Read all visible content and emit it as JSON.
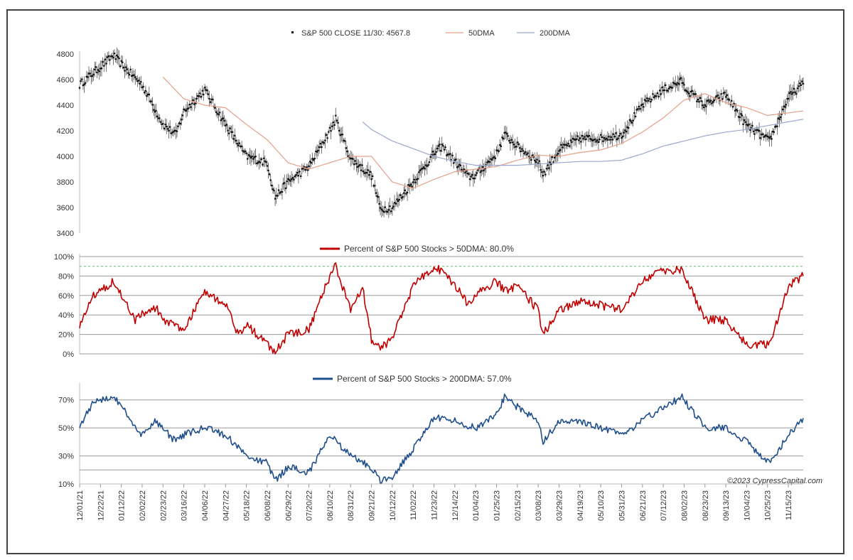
{
  "copyright": "©2023 CypressCapital.com",
  "x_tick_labels": [
    "12/01/21",
    "12/22/21",
    "01/12/22",
    "02/02/22",
    "02/23/22",
    "03/16/22",
    "04/06/22",
    "04/27/22",
    "05/18/22",
    "06/08/22",
    "06/29/22",
    "07/20/22",
    "08/10/22",
    "08/31/22",
    "09/21/22",
    "10/12/22",
    "11/02/22",
    "11/23/22",
    "12/14/22",
    "01/04/23",
    "01/25/23",
    "02/15/23",
    "03/08/23",
    "03/29/23",
    "04/19/23",
    "05/10/23",
    "05/31/23",
    "06/21/23",
    "07/12/23",
    "08/02/23",
    "08/23/23",
    "09/13/23",
    "10/04/23",
    "10/25/23",
    "11/15/23"
  ],
  "colors": {
    "price": "#111111",
    "ma50": "#e6a088",
    "ma200": "#9aa8cc",
    "red": "#c00000",
    "blue": "#1f4e8c",
    "grid": "#999999",
    "dash": "#66bb66"
  },
  "chart_data": [
    {
      "type": "line",
      "legend_placement": "top",
      "ylim": [
        3400,
        4800
      ],
      "yticks": [
        3400,
        3600,
        3800,
        4000,
        4200,
        4400,
        4600,
        4800
      ],
      "grid": false,
      "series": [
        {
          "name": "S&P 500 CLOSE 11/30: 4567.8",
          "style": "dots",
          "x": [
            "12/01/21",
            "12/22/21",
            "01/04/22",
            "01/12/22",
            "02/02/22",
            "02/23/22",
            "03/08/22",
            "03/16/22",
            "04/06/22",
            "04/27/22",
            "05/18/22",
            "06/08/22",
            "06/16/22",
            "06/29/22",
            "07/20/22",
            "08/10/22",
            "08/16/22",
            "08/31/22",
            "09/21/22",
            "09/30/22",
            "10/12/22",
            "11/02/22",
            "11/23/22",
            "12/01/22",
            "12/14/22",
            "12/28/22",
            "01/04/23",
            "01/25/23",
            "02/02/23",
            "02/15/23",
            "03/08/23",
            "03/13/23",
            "03/29/23",
            "04/19/23",
            "05/10/23",
            "05/31/23",
            "06/21/23",
            "07/12/23",
            "07/31/23",
            "08/02/23",
            "08/23/23",
            "09/13/23",
            "10/04/23",
            "10/27/23",
            "11/15/23",
            "11/30/23"
          ],
          "y": [
            4560,
            4700,
            4790,
            4720,
            4560,
            4250,
            4170,
            4350,
            4520,
            4250,
            4000,
            3950,
            3680,
            3800,
            3920,
            4200,
            4290,
            3980,
            3850,
            3590,
            3600,
            3800,
            4020,
            4080,
            3960,
            3840,
            3850,
            4020,
            4170,
            4080,
            3960,
            3860,
            4050,
            4140,
            4140,
            4170,
            4400,
            4520,
            4590,
            4540,
            4400,
            4480,
            4240,
            4120,
            4460,
            4567.8
          ]
        },
        {
          "name": "50DMA",
          "style": "line",
          "x": [
            "02/23/22",
            "03/16/22",
            "04/06/22",
            "04/27/22",
            "05/18/22",
            "06/08/22",
            "06/29/22",
            "07/20/22",
            "08/10/22",
            "08/31/22",
            "09/21/22",
            "10/12/22",
            "11/02/22",
            "11/23/22",
            "12/14/22",
            "01/04/23",
            "01/25/23",
            "02/15/23",
            "03/08/23",
            "03/29/23",
            "04/19/23",
            "05/10/23",
            "05/31/23",
            "06/21/23",
            "07/12/23",
            "08/02/23",
            "08/23/23",
            "09/13/23",
            "10/04/23",
            "10/25/23",
            "11/15/23",
            "11/30/23"
          ],
          "y": [
            4620,
            4450,
            4400,
            4380,
            4250,
            4130,
            3950,
            3900,
            3950,
            4000,
            4000,
            3800,
            3750,
            3820,
            3880,
            3900,
            3920,
            3970,
            4010,
            4000,
            4030,
            4050,
            4100,
            4190,
            4300,
            4440,
            4490,
            4420,
            4380,
            4320,
            4340,
            4355
          ]
        },
        {
          "name": "200DMA",
          "style": "line",
          "x": [
            "09/12/22",
            "09/21/22",
            "10/12/22",
            "11/02/22",
            "11/23/22",
            "12/14/22",
            "01/04/23",
            "01/25/23",
            "02/15/23",
            "03/08/23",
            "03/29/23",
            "04/19/23",
            "05/10/23",
            "05/31/23",
            "06/21/23",
            "07/12/23",
            "08/02/23",
            "08/23/23",
            "09/13/23",
            "10/04/23",
            "10/25/23",
            "11/15/23",
            "11/30/23"
          ],
          "y": [
            4270,
            4210,
            4120,
            4060,
            4000,
            3960,
            3930,
            3930,
            3930,
            3940,
            3950,
            3960,
            3960,
            3970,
            4020,
            4080,
            4120,
            4160,
            4190,
            4210,
            4240,
            4270,
            4290
          ]
        }
      ]
    },
    {
      "type": "line",
      "legend_placement": "top",
      "ylim": [
        0,
        100
      ],
      "yticks": [
        0,
        20,
        40,
        60,
        80,
        100
      ],
      "ytick_labels": [
        "0%",
        "20%",
        "40%",
        "60%",
        "80%",
        "100%"
      ],
      "grid": true,
      "reference_line": 90,
      "series": [
        {
          "name": "Percent of S&P 500 Stocks > 50DMA: 80.0%",
          "x": [
            "12/01/21",
            "12/15/21",
            "01/04/22",
            "01/12/22",
            "01/26/22",
            "02/02/22",
            "02/16/22",
            "02/23/22",
            "03/16/22",
            "04/06/22",
            "04/27/22",
            "05/10/22",
            "05/18/22",
            "06/08/22",
            "06/16/22",
            "06/29/22",
            "07/20/22",
            "08/10/22",
            "08/16/22",
            "08/31/22",
            "09/12/22",
            "09/21/22",
            "09/30/22",
            "10/12/22",
            "11/02/22",
            "11/23/22",
            "12/01/22",
            "12/14/22",
            "12/28/22",
            "01/04/23",
            "01/25/23",
            "02/02/23",
            "02/15/23",
            "03/08/23",
            "03/13/23",
            "03/29/23",
            "04/19/23",
            "05/10/23",
            "05/31/23",
            "06/21/23",
            "07/12/23",
            "07/31/23",
            "08/23/23",
            "09/13/23",
            "10/04/23",
            "10/27/23",
            "11/15/23",
            "11/30/23"
          ],
          "y": [
            30,
            60,
            75,
            60,
            35,
            40,
            48,
            35,
            25,
            65,
            50,
            20,
            30,
            10,
            3,
            20,
            25,
            80,
            90,
            45,
            70,
            15,
            5,
            15,
            70,
            90,
            85,
            70,
            50,
            60,
            75,
            65,
            70,
            45,
            20,
            45,
            55,
            50,
            45,
            75,
            85,
            87,
            35,
            35,
            10,
            10,
            70,
            80
          ]
        }
      ]
    },
    {
      "type": "line",
      "legend_placement": "top",
      "ylim": [
        10,
        80
      ],
      "yticks": [
        10,
        30,
        50,
        70
      ],
      "ytick_labels": [
        "10%",
        "30%",
        "50%",
        "70%"
      ],
      "grid": true,
      "reference_line": 20,
      "series": [
        {
          "name": "Percent of S&P 500 Stocks > 200DMA: 57.0%",
          "x": [
            "12/01/21",
            "12/15/21",
            "01/04/22",
            "01/12/22",
            "02/02/22",
            "02/16/22",
            "03/08/22",
            "03/16/22",
            "04/06/22",
            "04/27/22",
            "05/18/22",
            "06/08/22",
            "06/16/22",
            "06/29/22",
            "07/20/22",
            "08/10/22",
            "08/31/22",
            "09/21/22",
            "09/30/22",
            "10/12/22",
            "11/02/22",
            "11/23/22",
            "12/14/22",
            "01/04/23",
            "01/25/23",
            "02/02/23",
            "02/15/23",
            "03/08/23",
            "03/13/23",
            "03/29/23",
            "04/19/23",
            "05/10/23",
            "05/31/23",
            "06/21/23",
            "07/12/23",
            "07/31/23",
            "08/23/23",
            "09/13/23",
            "10/04/23",
            "10/27/23",
            "11/15/23",
            "11/30/23"
          ],
          "y": [
            52,
            68,
            73,
            65,
            45,
            55,
            40,
            45,
            50,
            45,
            30,
            25,
            12,
            22,
            18,
            45,
            30,
            22,
            12,
            15,
            35,
            58,
            55,
            50,
            60,
            72,
            65,
            55,
            40,
            55,
            55,
            50,
            45,
            55,
            65,
            72,
            50,
            50,
            40,
            25,
            45,
            57
          ]
        }
      ]
    }
  ]
}
